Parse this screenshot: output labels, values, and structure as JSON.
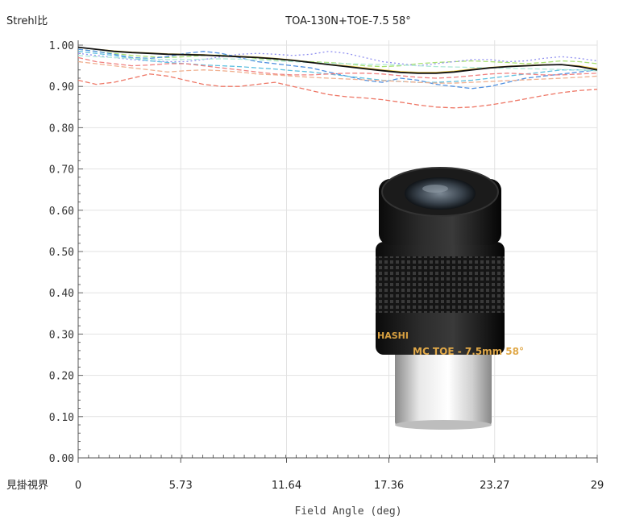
{
  "chart_data": {
    "type": "line",
    "title": "TOA-130N+TOE-7.5 58°",
    "ylabel": "Strehl比",
    "xlabel": "Field Angle (deg)",
    "x_axis_prefix": "見掛視界",
    "xlim": [
      0,
      29
    ],
    "ylim": [
      0,
      1.0
    ],
    "xticks": [
      0,
      5.73,
      11.64,
      17.36,
      23.27,
      29
    ],
    "xtick_labels": [
      "0",
      "5.73",
      "11.64",
      "17.36",
      "23.27",
      "29"
    ],
    "yticks": [
      0,
      0.1,
      0.2,
      0.3,
      0.4,
      0.5,
      0.6,
      0.7,
      0.8,
      0.9,
      1.0
    ],
    "ytick_labels": [
      "0.00",
      "0.10",
      "0.20",
      "0.30",
      "0.40",
      "0.50",
      "0.60",
      "0.70",
      "0.80",
      "0.90",
      "1.00"
    ],
    "grid": true,
    "legend": "none",
    "x": [
      0,
      1,
      2,
      3,
      4,
      5,
      6,
      7,
      8,
      9,
      10,
      11,
      12,
      13,
      14,
      15,
      16,
      17,
      18,
      19,
      20,
      21,
      22,
      23,
      24,
      25,
      26,
      27,
      28,
      29
    ],
    "series": [
      {
        "color": "#111111",
        "style": "solid",
        "values": [
          0.995,
          0.99,
          0.985,
          0.982,
          0.98,
          0.978,
          0.977,
          0.976,
          0.974,
          0.972,
          0.97,
          0.967,
          0.963,
          0.958,
          0.953,
          0.948,
          0.943,
          0.938,
          0.934,
          0.932,
          0.932,
          0.935,
          0.94,
          0.945,
          0.948,
          0.95,
          0.952,
          0.953,
          0.948,
          0.94
        ]
      },
      {
        "color": "#f0d050",
        "style": "solid",
        "values": [
          0.995,
          0.99,
          0.986,
          0.983,
          0.981,
          0.979,
          0.978,
          0.977,
          0.975,
          0.973,
          0.971,
          0.968,
          0.964,
          0.959,
          0.954,
          0.95,
          0.945,
          0.94,
          0.936,
          0.934,
          0.934,
          0.937,
          0.942,
          0.946,
          0.949,
          0.951,
          0.953,
          0.953,
          0.95,
          0.943
        ]
      },
      {
        "color": "#a8e070",
        "style": "dashed",
        "values": [
          0.99,
          0.985,
          0.98,
          0.975,
          0.972,
          0.97,
          0.972,
          0.975,
          0.976,
          0.972,
          0.968,
          0.965,
          0.962,
          0.96,
          0.958,
          0.955,
          0.95,
          0.948,
          0.95,
          0.955,
          0.958,
          0.96,
          0.962,
          0.96,
          0.958,
          0.955,
          0.958,
          0.962,
          0.96,
          0.955
        ]
      },
      {
        "color": "#9090f0",
        "style": "dotted",
        "values": [
          0.98,
          0.975,
          0.97,
          0.965,
          0.962,
          0.96,
          0.96,
          0.965,
          0.972,
          0.978,
          0.98,
          0.978,
          0.975,
          0.978,
          0.985,
          0.98,
          0.97,
          0.96,
          0.955,
          0.95,
          0.955,
          0.96,
          0.965,
          0.965,
          0.96,
          0.962,
          0.968,
          0.972,
          0.968,
          0.962
        ]
      },
      {
        "color": "#5090e0",
        "style": "dashed",
        "values": [
          0.99,
          0.985,
          0.978,
          0.97,
          0.968,
          0.972,
          0.98,
          0.985,
          0.98,
          0.97,
          0.96,
          0.955,
          0.95,
          0.945,
          0.935,
          0.925,
          0.915,
          0.91,
          0.92,
          0.915,
          0.905,
          0.9,
          0.895,
          0.9,
          0.91,
          0.92,
          0.925,
          0.93,
          0.935,
          0.94
        ]
      },
      {
        "color": "#60c0e0",
        "style": "dashed",
        "values": [
          0.985,
          0.98,
          0.975,
          0.968,
          0.962,
          0.958,
          0.955,
          0.952,
          0.95,
          0.948,
          0.945,
          0.942,
          0.938,
          0.935,
          0.93,
          0.925,
          0.92,
          0.915,
          0.912,
          0.91,
          0.91,
          0.912,
          0.915,
          0.92,
          0.925,
          0.93,
          0.935,
          0.94,
          0.94,
          0.938
        ]
      },
      {
        "color": "#f08080",
        "style": "dashed",
        "values": [
          0.97,
          0.96,
          0.955,
          0.95,
          0.952,
          0.955,
          0.955,
          0.95,
          0.945,
          0.94,
          0.935,
          0.93,
          0.928,
          0.928,
          0.93,
          0.932,
          0.932,
          0.93,
          0.926,
          0.922,
          0.92,
          0.922,
          0.926,
          0.93,
          0.932,
          0.93,
          0.928,
          0.928,
          0.93,
          0.932
        ]
      },
      {
        "color": "#ee7766",
        "style": "dashed",
        "values": [
          0.915,
          0.905,
          0.91,
          0.92,
          0.93,
          0.925,
          0.915,
          0.905,
          0.9,
          0.9,
          0.905,
          0.91,
          0.9,
          0.89,
          0.88,
          0.875,
          0.872,
          0.868,
          0.862,
          0.855,
          0.85,
          0.848,
          0.85,
          0.855,
          0.862,
          0.87,
          0.878,
          0.885,
          0.89,
          0.893
        ]
      },
      {
        "color": "#f0b090",
        "style": "dashed",
        "values": [
          0.96,
          0.955,
          0.95,
          0.945,
          0.94,
          0.935,
          0.938,
          0.94,
          0.938,
          0.935,
          0.93,
          0.928,
          0.925,
          0.922,
          0.92,
          0.918,
          0.916,
          0.914,
          0.912,
          0.91,
          0.908,
          0.908,
          0.91,
          0.912,
          0.914,
          0.916,
          0.918,
          0.92,
          0.922,
          0.925
        ]
      },
      {
        "color": "#b0e8d8",
        "style": "dashed",
        "values": [
          0.975,
          0.972,
          0.97,
          0.968,
          0.966,
          0.965,
          0.965,
          0.966,
          0.967,
          0.966,
          0.964,
          0.962,
          0.96,
          0.958,
          0.956,
          0.955,
          0.954,
          0.953,
          0.952,
          0.95,
          0.948,
          0.947,
          0.946,
          0.945,
          0.944,
          0.943,
          0.942,
          0.941,
          0.94,
          0.938
        ]
      }
    ],
    "inset_image": {
      "label": "MC TOE - 7.5mm 58°",
      "brand_fragment": "HASHI"
    }
  }
}
